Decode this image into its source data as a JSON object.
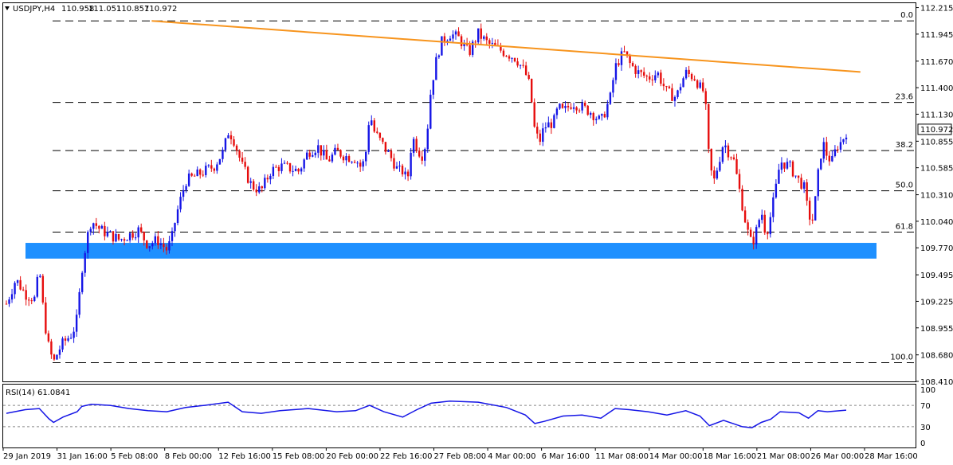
{
  "header": {
    "symbol": "USDJPY,H4",
    "open": "110.958",
    "high": "111.051",
    "low": "110.857",
    "close": "110.972"
  },
  "rsi_label": "RSI(14) 61.0841",
  "price_badge": "110.972",
  "colors": {
    "bull": "#1515e6",
    "bear": "#e60d0d",
    "support_zone": "#1e90ff",
    "trendline": "#f7941d",
    "rsi_line": "#1515e6"
  },
  "chart_data": {
    "type": "candlestick",
    "price_axis": {
      "range": [
        108.41,
        112.26
      ],
      "ticks": [
        "112.215",
        "111.945",
        "111.670",
        "111.400",
        "111.130",
        "110.855",
        "110.585",
        "110.310",
        "110.040",
        "109.770",
        "109.495",
        "109.225",
        "108.955",
        "108.680",
        "108.410"
      ]
    },
    "fib_levels": [
      {
        "label": "0.0",
        "price": 112.08
      },
      {
        "label": "23.6",
        "price": 111.25
      },
      {
        "label": "38.2",
        "price": 110.76
      },
      {
        "label": "50.0",
        "price": 110.35
      },
      {
        "label": "61.8",
        "price": 109.93
      },
      {
        "label": "100.0",
        "price": 108.6
      }
    ],
    "support_zone": [
      109.66,
      109.82
    ],
    "trendline": [
      {
        "x": 0.154,
        "price": 112.08
      },
      {
        "x": 0.905,
        "price": 111.56
      }
    ],
    "x_labels": [
      "29 Jan 2019",
      "31 Jan 16:00",
      "5 Feb 08:00",
      "8 Feb 00:00",
      "12 Feb 16:00",
      "15 Feb 08:00",
      "20 Feb 00:00",
      "22 Feb 16:00",
      "27 Feb 08:00",
      "4 Mar 00:00",
      "6 Mar 16:00",
      "11 Mar 08:00",
      "14 Mar 00:00",
      "18 Mar 16:00",
      "21 Mar 08:00",
      "26 Mar 00:00",
      "28 Mar 16:00"
    ],
    "close_path": [
      [
        0,
        109.2
      ],
      [
        0.01,
        109.45
      ],
      [
        0.02,
        109.3
      ],
      [
        0.03,
        109.25
      ],
      [
        0.035,
        109.55
      ],
      [
        0.04,
        109.05
      ],
      [
        0.045,
        108.75
      ],
      [
        0.05,
        108.6
      ],
      [
        0.055,
        108.72
      ],
      [
        0.06,
        108.8
      ],
      [
        0.07,
        108.9
      ],
      [
        0.075,
        109.05
      ],
      [
        0.08,
        109.55
      ],
      [
        0.085,
        109.85
      ],
      [
        0.09,
        110.05
      ],
      [
        0.1,
        109.95
      ],
      [
        0.11,
        109.9
      ],
      [
        0.12,
        109.85
      ],
      [
        0.13,
        109.9
      ],
      [
        0.14,
        109.95
      ],
      [
        0.15,
        109.8
      ],
      [
        0.16,
        109.85
      ],
      [
        0.17,
        109.75
      ],
      [
        0.175,
        109.85
      ],
      [
        0.18,
        110.1
      ],
      [
        0.19,
        110.45
      ],
      [
        0.2,
        110.5
      ],
      [
        0.21,
        110.55
      ],
      [
        0.22,
        110.6
      ],
      [
        0.23,
        110.75
      ],
      [
        0.235,
        110.95
      ],
      [
        0.24,
        110.9
      ],
      [
        0.25,
        110.6
      ],
      [
        0.26,
        110.4
      ],
      [
        0.27,
        110.35
      ],
      [
        0.28,
        110.55
      ],
      [
        0.29,
        110.6
      ],
      [
        0.3,
        110.58
      ],
      [
        0.31,
        110.55
      ],
      [
        0.32,
        110.75
      ],
      [
        0.33,
        110.8
      ],
      [
        0.34,
        110.65
      ],
      [
        0.35,
        110.75
      ],
      [
        0.36,
        110.7
      ],
      [
        0.37,
        110.68
      ],
      [
        0.375,
        110.6
      ],
      [
        0.38,
        110.65
      ],
      [
        0.385,
        111.15
      ],
      [
        0.39,
        110.95
      ],
      [
        0.4,
        110.8
      ],
      [
        0.41,
        110.65
      ],
      [
        0.415,
        110.55
      ],
      [
        0.42,
        110.55
      ],
      [
        0.425,
        110.45
      ],
      [
        0.43,
        110.9
      ],
      [
        0.44,
        110.7
      ],
      [
        0.445,
        110.85
      ],
      [
        0.45,
        111.4
      ],
      [
        0.455,
        111.65
      ],
      [
        0.46,
        111.85
      ],
      [
        0.47,
        111.95
      ],
      [
        0.48,
        111.9
      ],
      [
        0.49,
        111.75
      ],
      [
        0.5,
        111.95
      ],
      [
        0.51,
        111.85
      ],
      [
        0.52,
        111.8
      ],
      [
        0.53,
        111.75
      ],
      [
        0.54,
        111.7
      ],
      [
        0.55,
        111.55
      ],
      [
        0.555,
        111.4
      ],
      [
        0.56,
        110.95
      ],
      [
        0.565,
        110.85
      ],
      [
        0.57,
        111.0
      ],
      [
        0.58,
        111.05
      ],
      [
        0.585,
        111.2
      ],
      [
        0.59,
        111.15
      ],
      [
        0.6,
        111.25
      ],
      [
        0.61,
        111.2
      ],
      [
        0.62,
        111.15
      ],
      [
        0.63,
        111.05
      ],
      [
        0.64,
        111.3
      ],
      [
        0.645,
        111.6
      ],
      [
        0.65,
        111.7
      ],
      [
        0.655,
        111.75
      ],
      [
        0.66,
        111.65
      ],
      [
        0.67,
        111.55
      ],
      [
        0.68,
        111.5
      ],
      [
        0.69,
        111.55
      ],
      [
        0.7,
        111.35
      ],
      [
        0.71,
        111.3
      ],
      [
        0.715,
        111.45
      ],
      [
        0.72,
        111.55
      ],
      [
        0.73,
        111.5
      ],
      [
        0.735,
        111.4
      ],
      [
        0.74,
        111.35
      ],
      [
        0.745,
        110.6
      ],
      [
        0.75,
        110.45
      ],
      [
        0.76,
        110.85
      ],
      [
        0.765,
        110.75
      ],
      [
        0.77,
        110.7
      ],
      [
        0.78,
        110.2
      ],
      [
        0.785,
        109.95
      ],
      [
        0.79,
        109.8
      ],
      [
        0.795,
        109.95
      ],
      [
        0.8,
        110.15
      ],
      [
        0.805,
        109.9
      ],
      [
        0.81,
        110.1
      ],
      [
        0.815,
        110.35
      ],
      [
        0.82,
        110.65
      ],
      [
        0.83,
        110.6
      ],
      [
        0.84,
        110.45
      ],
      [
        0.845,
        110.4
      ],
      [
        0.85,
        110.1
      ],
      [
        0.855,
        110.05
      ],
      [
        0.86,
        110.5
      ],
      [
        0.865,
        110.85
      ],
      [
        0.87,
        110.7
      ],
      [
        0.875,
        110.65
      ],
      [
        0.88,
        110.8
      ],
      [
        0.885,
        110.85
      ],
      [
        0.89,
        110.95
      ]
    ],
    "rsi": {
      "label": "RSI(14)",
      "value": 61.0841,
      "range": [
        0,
        100
      ],
      "levels": [
        70,
        30
      ],
      "ticks": [
        "100",
        "70",
        "30",
        "0"
      ],
      "path": [
        [
          0,
          55
        ],
        [
          0.02,
          62
        ],
        [
          0.035,
          64
        ],
        [
          0.045,
          45
        ],
        [
          0.05,
          38
        ],
        [
          0.06,
          48
        ],
        [
          0.075,
          58
        ],
        [
          0.08,
          68
        ],
        [
          0.09,
          72
        ],
        [
          0.11,
          70
        ],
        [
          0.13,
          64
        ],
        [
          0.15,
          60
        ],
        [
          0.17,
          58
        ],
        [
          0.19,
          66
        ],
        [
          0.21,
          70
        ],
        [
          0.235,
          76
        ],
        [
          0.25,
          58
        ],
        [
          0.27,
          55
        ],
        [
          0.29,
          60
        ],
        [
          0.32,
          64
        ],
        [
          0.35,
          58
        ],
        [
          0.37,
          60
        ],
        [
          0.385,
          70
        ],
        [
          0.4,
          58
        ],
        [
          0.42,
          48
        ],
        [
          0.435,
          62
        ],
        [
          0.45,
          74
        ],
        [
          0.47,
          78
        ],
        [
          0.5,
          76
        ],
        [
          0.53,
          66
        ],
        [
          0.55,
          52
        ],
        [
          0.56,
          36
        ],
        [
          0.57,
          40
        ],
        [
          0.59,
          50
        ],
        [
          0.61,
          52
        ],
        [
          0.63,
          46
        ],
        [
          0.645,
          64
        ],
        [
          0.66,
          62
        ],
        [
          0.68,
          58
        ],
        [
          0.7,
          52
        ],
        [
          0.72,
          60
        ],
        [
          0.735,
          50
        ],
        [
          0.745,
          32
        ],
        [
          0.76,
          42
        ],
        [
          0.78,
          30
        ],
        [
          0.79,
          28
        ],
        [
          0.8,
          38
        ],
        [
          0.81,
          44
        ],
        [
          0.82,
          58
        ],
        [
          0.84,
          56
        ],
        [
          0.85,
          46
        ],
        [
          0.86,
          60
        ],
        [
          0.87,
          58
        ],
        [
          0.89,
          61
        ]
      ]
    }
  }
}
